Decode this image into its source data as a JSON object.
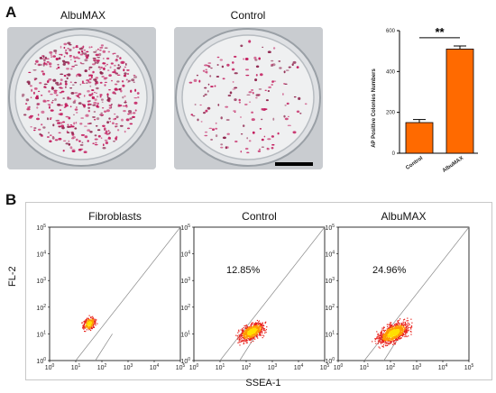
{
  "panel_a": {
    "letter": "A",
    "dishes": [
      {
        "label": "AlbuMAX"
      },
      {
        "label": "Control"
      }
    ]
  },
  "panel_b": {
    "letter": "B",
    "plots": [
      {
        "title": "Fibroblasts",
        "percent": ""
      },
      {
        "title": "Control",
        "percent": "12.85%"
      },
      {
        "title": "AlbuMAX",
        "percent": "24.96%"
      }
    ],
    "ylabel": "FL-2",
    "xlabel": "SSEA-1",
    "ticks": [
      "0",
      "1",
      "2",
      "3",
      "4",
      "5"
    ],
    "tick_base": "10"
  },
  "chart_data": {
    "type": "bar",
    "categories": [
      "Control",
      "AlbuMAX"
    ],
    "values": [
      150,
      510
    ],
    "errors": [
      15,
      15
    ],
    "ylabel": "AP Positive Colonies Numbers",
    "ylim": [
      0,
      600
    ],
    "yticks": [
      0,
      200,
      400,
      600
    ],
    "significance": "**",
    "bar_color": "#ff6a00"
  }
}
